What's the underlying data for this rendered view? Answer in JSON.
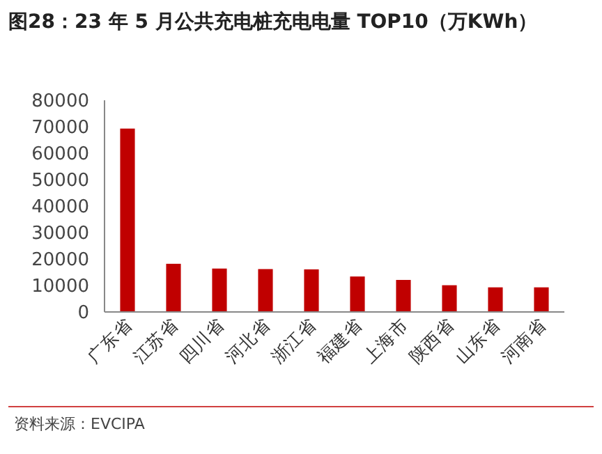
{
  "chart_data": {
    "type": "bar",
    "title": "图28：23 年 5 月公共充电桩充电电量 TOP10（万KWh）",
    "categories": [
      "广东省",
      "江苏省",
      "四川省",
      "河北省",
      "浙江省",
      "福建省",
      "上海市",
      "陕西省",
      "山东省",
      "河南省"
    ],
    "values": [
      69300,
      18200,
      16400,
      16200,
      16100,
      13400,
      12100,
      10100,
      9300,
      9300
    ],
    "color": "#c00000",
    "ylim": [
      0,
      80000
    ],
    "yticks": [
      0,
      10000,
      20000,
      30000,
      40000,
      50000,
      60000,
      70000,
      80000
    ],
    "grid": false,
    "annotations": [
      "资料来源：EVCIPA"
    ]
  }
}
